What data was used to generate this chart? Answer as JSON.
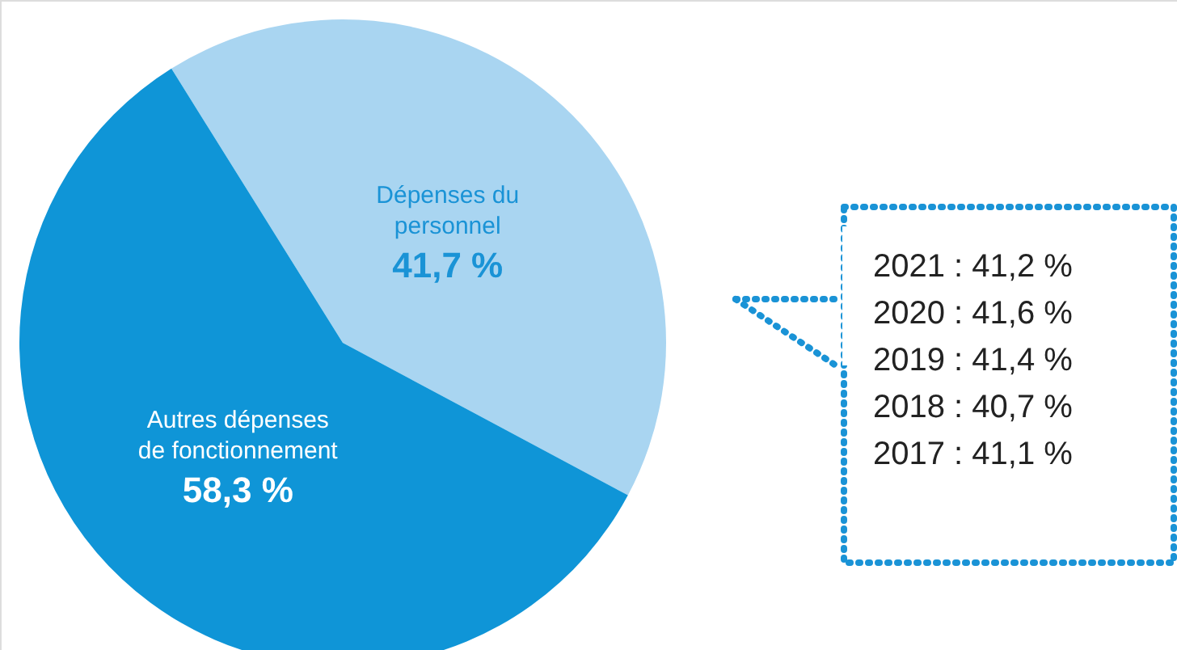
{
  "chart_data": {
    "type": "pie",
    "categories": [
      "Dépenses du personnel",
      "Autres dépenses de fonctionnement"
    ],
    "values": [
      41.7,
      58.3
    ],
    "colors": [
      "#a9d5f1",
      "#0f95d7"
    ],
    "value_labels": [
      "41,7 %",
      "58,3 %"
    ],
    "annotations": [
      "2021 : 41,2 %",
      "2020 : 41,6 %",
      "2019 : 41,4 %",
      "2018 : 40,7 %",
      "2017 : 41,1 %"
    ]
  }
}
